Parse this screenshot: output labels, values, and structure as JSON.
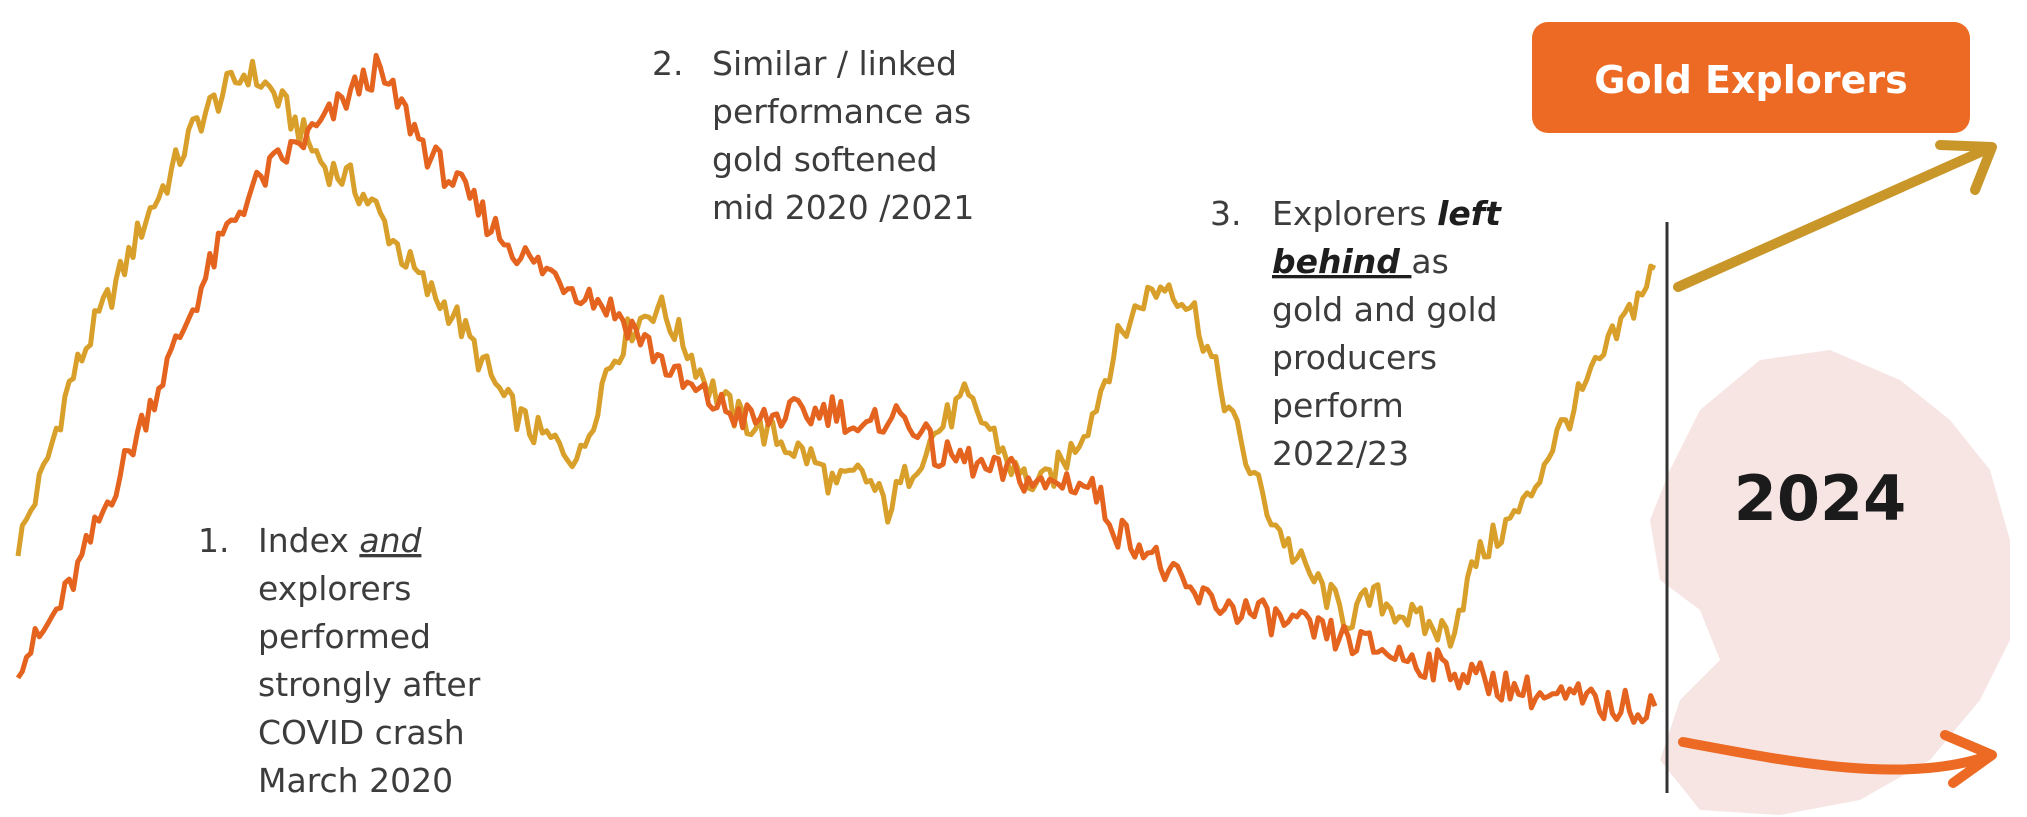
{
  "badge": {
    "label": "Gold Explorers",
    "color": "#ec6a24"
  },
  "year_marker": "2024",
  "annotations": {
    "a1": {
      "num": "1.",
      "l1a": "Index ",
      "l1b": "and",
      "l2": "explorers",
      "l3": "performed",
      "l4": "strongly after",
      "l5": "COVID crash",
      "l6": "March 2020"
    },
    "a2": {
      "num": "2.",
      "l1": "Similar / linked",
      "l2": "performance as",
      "l3": "gold softened",
      "l4": "mid 2020 /2021"
    },
    "a3": {
      "num": "3.",
      "l1a": "Explorers ",
      "l1b": "left",
      "l2a": "behind ",
      "l2b": "as",
      "l3": "gold and gold",
      "l4": "producers",
      "l5": "perform",
      "l6": "2022/23"
    }
  },
  "colors": {
    "gold_series": "#d8a02a",
    "explorers_series": "#e4631f",
    "arrow_gold": "#c9962a",
    "arrow_orange": "#ec6a24",
    "divider": "#333333"
  },
  "chart_data": {
    "type": "line",
    "title": "",
    "xlabel": "",
    "ylabel": "",
    "x": [
      0,
      1,
      2,
      3,
      4,
      5,
      6,
      7,
      8,
      9,
      10,
      11,
      12,
      13,
      14,
      15,
      16,
      17,
      18,
      19,
      20,
      21,
      22,
      23,
      24,
      25,
      26,
      27,
      28,
      29,
      30,
      31,
      32,
      33,
      34,
      35,
      36,
      37,
      38,
      39,
      40,
      41,
      42,
      43,
      44,
      45,
      46,
      47,
      48,
      49,
      50,
      51,
      52,
      53,
      54,
      55,
      56,
      57,
      58,
      59,
      60,
      61,
      62,
      63,
      64
    ],
    "ylim": [
      0,
      100
    ],
    "series": [
      {
        "name": "",
        "color": "#d8a02a",
        "values": [
          28,
          38,
          50,
          58,
          65,
          73,
          79,
          86,
          90,
          93,
          90,
          85,
          80,
          78,
          74,
          68,
          63,
          60,
          54,
          48,
          44,
          42,
          40,
          52,
          58,
          61,
          56,
          50,
          46,
          44,
          42,
          40,
          36,
          38,
          33,
          39,
          44,
          48,
          44,
          38,
          36,
          40,
          46,
          56,
          62,
          64,
          60,
          50,
          40,
          32,
          26,
          22,
          18,
          21,
          19,
          17,
          16,
          26,
          30,
          34,
          42,
          48,
          54,
          60,
          66
        ]
      },
      {
        "name": "",
        "color": "#e4631f",
        "values": [
          12,
          16,
          22,
          30,
          38,
          46,
          54,
          62,
          70,
          76,
          80,
          83,
          86,
          90,
          93,
          88,
          82,
          78,
          74,
          70,
          67,
          65,
          63,
          61,
          58,
          54,
          50,
          48,
          46,
          45,
          46,
          46,
          47,
          43,
          46,
          45,
          40,
          40,
          38,
          38,
          36,
          37,
          36,
          30,
          28,
          24,
          21,
          20,
          19,
          18,
          17,
          16,
          15,
          14,
          13,
          12,
          11,
          10,
          9,
          8,
          7,
          7,
          6,
          6,
          6
        ]
      }
    ]
  }
}
